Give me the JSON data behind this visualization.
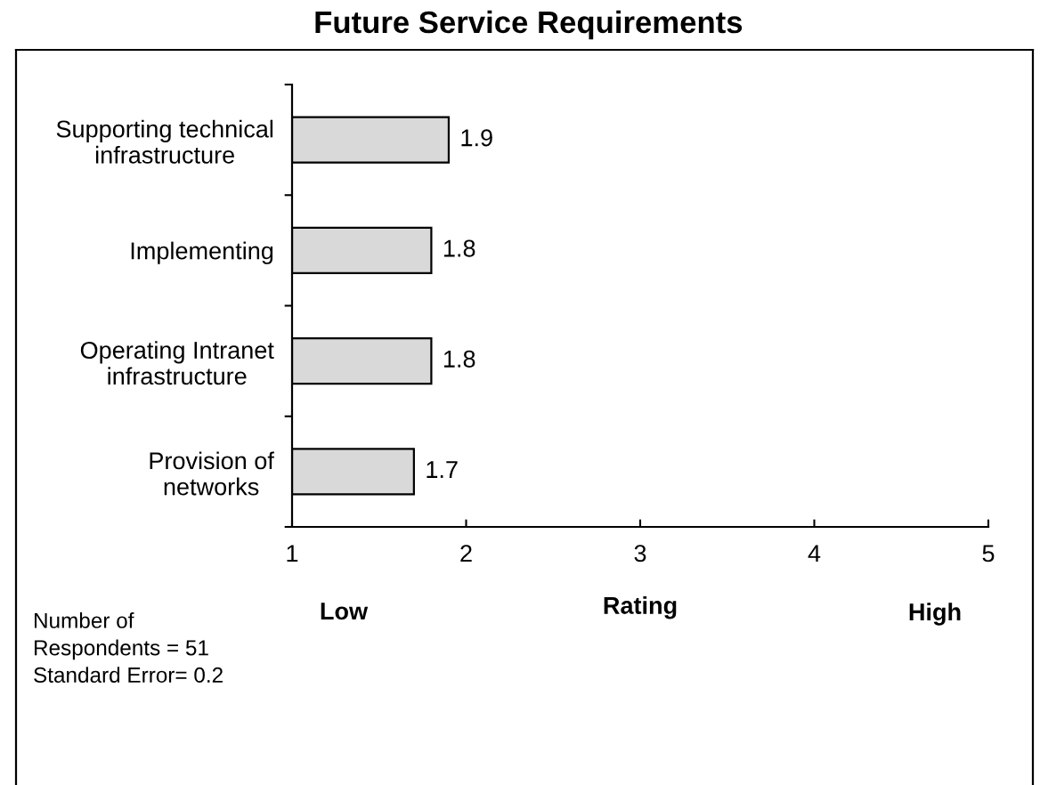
{
  "chart_data": {
    "type": "bar",
    "orientation": "horizontal",
    "title": "Future Service Requirements",
    "xlabel": "Rating",
    "categories": [
      "Supporting technical\ninfrastructure",
      "Implementing",
      "Operating Intranet\ninfrastructure",
      "Provision of\nnetworks"
    ],
    "values": [
      1.9,
      1.8,
      1.8,
      1.7
    ],
    "color": "#d9d9d9",
    "xlim": [
      1,
      5
    ],
    "xticks": [
      1,
      2,
      3,
      4,
      5
    ],
    "data_labels": true,
    "annotations": [
      "Low",
      "High",
      "Number of\nRespondents = 51\nStandard Error= 0.2"
    ]
  }
}
